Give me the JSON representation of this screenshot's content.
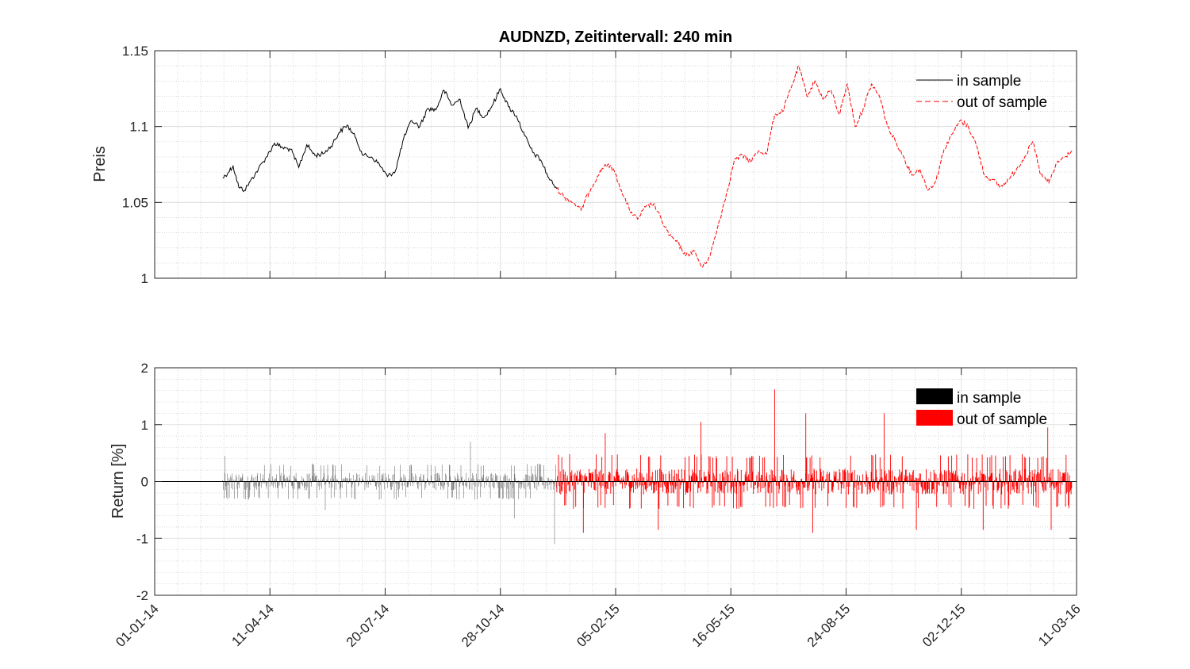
{
  "chart_data": [
    {
      "type": "line",
      "title": "AUDNZD, Zeitintervall: 240 min",
      "xlabel": "",
      "ylabel": "Preis",
      "ylim": [
        1.0,
        1.15
      ],
      "y_ticks": [
        "1",
        "1.05",
        "1.1",
        "1.15"
      ],
      "xlim": [
        "2014-01-01",
        "2016-03-11"
      ],
      "grid": "minor dotted",
      "legend_position": "top-right",
      "series": [
        {
          "name": "in sample",
          "color": "#000000",
          "style": "solid",
          "x": [
            "2014-03-01",
            "2014-03-06",
            "2014-03-10",
            "2014-03-15",
            "2014-03-20",
            "2014-03-25",
            "2014-04-01",
            "2014-04-08",
            "2014-04-15",
            "2014-04-22",
            "2014-04-29",
            "2014-05-06",
            "2014-05-13",
            "2014-05-20",
            "2014-05-27",
            "2014-06-03",
            "2014-06-10",
            "2014-06-17",
            "2014-06-24",
            "2014-07-01",
            "2014-07-08",
            "2014-07-15",
            "2014-07-22",
            "2014-07-29",
            "2014-08-05",
            "2014-08-12",
            "2014-08-19",
            "2014-08-26",
            "2014-09-02",
            "2014-09-09",
            "2014-09-16",
            "2014-09-23",
            "2014-09-30",
            "2014-10-07",
            "2014-10-14",
            "2014-10-21",
            "2014-10-28",
            "2014-11-04",
            "2014-11-11",
            "2014-11-18",
            "2014-11-25",
            "2014-12-02",
            "2014-12-09",
            "2014-12-16"
          ],
          "y": [
            1.066,
            1.07,
            1.074,
            1.06,
            1.058,
            1.064,
            1.072,
            1.08,
            1.089,
            1.086,
            1.085,
            1.073,
            1.088,
            1.081,
            1.082,
            1.087,
            1.096,
            1.101,
            1.093,
            1.081,
            1.08,
            1.075,
            1.067,
            1.071,
            1.092,
            1.104,
            1.1,
            1.112,
            1.111,
            1.124,
            1.114,
            1.118,
            1.099,
            1.112,
            1.106,
            1.114,
            1.125,
            1.113,
            1.107,
            1.094,
            1.083,
            1.078,
            1.066,
            1.059
          ]
        },
        {
          "name": "out of sample",
          "color": "#ff0000",
          "style": "dashed",
          "x": [
            "2014-12-16",
            "2014-12-23",
            "2014-12-30",
            "2015-01-06",
            "2015-01-13",
            "2015-01-20",
            "2015-01-27",
            "2015-02-03",
            "2015-02-10",
            "2015-02-17",
            "2015-02-24",
            "2015-03-03",
            "2015-03-10",
            "2015-03-17",
            "2015-03-24",
            "2015-03-31",
            "2015-04-07",
            "2015-04-14",
            "2015-04-21",
            "2015-04-28",
            "2015-05-05",
            "2015-05-12",
            "2015-05-19",
            "2015-05-26",
            "2015-06-02",
            "2015-06-09",
            "2015-06-16",
            "2015-06-23",
            "2015-06-30",
            "2015-07-07",
            "2015-07-14",
            "2015-07-21",
            "2015-07-28",
            "2015-08-04",
            "2015-08-11",
            "2015-08-18",
            "2015-08-25",
            "2015-09-01",
            "2015-09-08",
            "2015-09-15",
            "2015-09-22",
            "2015-09-29",
            "2015-10-06",
            "2015-10-13",
            "2015-10-20",
            "2015-10-27",
            "2015-11-03",
            "2015-11-10",
            "2015-11-17",
            "2015-11-24",
            "2015-12-01",
            "2015-12-08",
            "2015-12-15",
            "2015-12-22",
            "2015-12-29",
            "2016-01-05",
            "2016-01-12",
            "2016-01-19",
            "2016-01-26",
            "2016-02-02",
            "2016-02-09",
            "2016-02-16",
            "2016-02-23",
            "2016-03-01",
            "2016-03-07"
          ],
          "y": [
            1.059,
            1.053,
            1.05,
            1.045,
            1.057,
            1.067,
            1.075,
            1.072,
            1.058,
            1.045,
            1.039,
            1.047,
            1.049,
            1.038,
            1.028,
            1.023,
            1.015,
            1.018,
            1.007,
            1.015,
            1.035,
            1.055,
            1.078,
            1.081,
            1.077,
            1.084,
            1.082,
            1.108,
            1.11,
            1.125,
            1.14,
            1.12,
            1.13,
            1.118,
            1.124,
            1.108,
            1.128,
            1.1,
            1.112,
            1.128,
            1.12,
            1.1,
            1.09,
            1.08,
            1.068,
            1.072,
            1.058,
            1.064,
            1.085,
            1.095,
            1.104,
            1.1,
            1.088,
            1.068,
            1.065,
            1.06,
            1.065,
            1.072,
            1.08,
            1.09,
            1.068,
            1.063,
            1.076,
            1.08,
            1.084
          ]
        }
      ]
    },
    {
      "type": "line",
      "title": "",
      "xlabel": "",
      "ylabel": "Return [%]",
      "ylim": [
        -2,
        2
      ],
      "y_ticks": [
        "-2",
        "-1",
        "0",
        "1",
        "2"
      ],
      "xlim": [
        "2014-01-01",
        "2016-03-11"
      ],
      "x_ticks": [
        "01-01-14",
        "11-04-14",
        "20-07-14",
        "28-10-14",
        "05-02-15",
        "16-05-15",
        "24-08-15",
        "02-12-15",
        "11-03-16"
      ],
      "grid": "minor dotted",
      "legend_position": "top-right",
      "series": [
        {
          "name": "in sample",
          "color": "#000000",
          "note_range": [
            "2014-03-01",
            "2014-12-16"
          ],
          "typical_abs_return": 0.2,
          "extremes": [
            {
              "x": "2014-03-03",
              "y": 0.45
            },
            {
              "x": "2014-05-29",
              "y": -0.5
            },
            {
              "x": "2014-10-02",
              "y": 0.7
            },
            {
              "x": "2014-11-09",
              "y": -0.65
            },
            {
              "x": "2014-12-14",
              "y": -1.1
            }
          ]
        },
        {
          "name": "out of sample",
          "color": "#ff0000",
          "note_range": [
            "2014-12-16",
            "2016-03-07"
          ],
          "typical_abs_return": 0.3,
          "extremes": [
            {
              "x": "2015-01-08",
              "y": -0.9
            },
            {
              "x": "2015-01-27",
              "y": 0.85
            },
            {
              "x": "2015-03-14",
              "y": -0.85
            },
            {
              "x": "2015-04-20",
              "y": 1.05
            },
            {
              "x": "2015-06-23",
              "y": 1.62
            },
            {
              "x": "2015-07-20",
              "y": 1.2
            },
            {
              "x": "2015-07-26",
              "y": -0.9
            },
            {
              "x": "2015-09-26",
              "y": 1.2
            },
            {
              "x": "2015-10-24",
              "y": -0.85
            },
            {
              "x": "2015-12-21",
              "y": -0.85
            },
            {
              "x": "2016-02-15",
              "y": 0.95
            },
            {
              "x": "2016-02-18",
              "y": -0.85
            }
          ]
        }
      ]
    }
  ]
}
